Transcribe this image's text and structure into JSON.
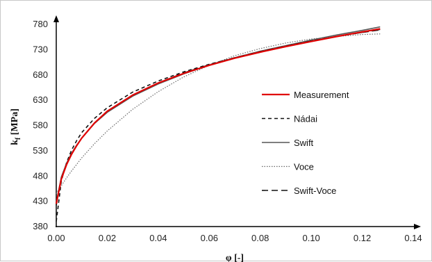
{
  "chart_data": {
    "type": "line",
    "title": "",
    "xlabel": "φ [-]",
    "ylabel_main": "k",
    "ylabel_sub": "f",
    "ylabel_unit": " [MPa]",
    "xlim": [
      0,
      0.14
    ],
    "ylim": [
      380,
      780
    ],
    "x_ticks": [
      "0.00",
      "0.02",
      "0.04",
      "0.06",
      "0.08",
      "0.10",
      "0.12",
      "0.14"
    ],
    "y_ticks": [
      "380",
      "430",
      "480",
      "530",
      "580",
      "630",
      "680",
      "730",
      "780"
    ],
    "grid": false,
    "legend_position": "right",
    "series": [
      {
        "name": "Measurement",
        "color": "#e00000",
        "dash": "solid",
        "x": [
          0.0,
          0.002,
          0.004,
          0.006,
          0.008,
          0.01,
          0.015,
          0.02,
          0.03,
          0.04,
          0.05,
          0.06,
          0.07,
          0.08,
          0.09,
          0.1,
          0.11,
          0.12,
          0.127
        ],
        "y": [
          425,
          474,
          502,
          523,
          540,
          555,
          585,
          608,
          640,
          664,
          683,
          699,
          713,
          725,
          736,
          746,
          756,
          765,
          771
        ]
      },
      {
        "name": "Nádai",
        "color": "#111111",
        "dash": "5,4",
        "x": [
          0.0,
          0.002,
          0.004,
          0.006,
          0.008,
          0.01,
          0.015,
          0.02,
          0.03,
          0.04,
          0.05,
          0.06,
          0.07,
          0.08,
          0.09,
          0.1,
          0.11,
          0.12,
          0.127
        ],
        "y": [
          390,
          470,
          506,
          531,
          550,
          566,
          594,
          615,
          646,
          668,
          686,
          701,
          714,
          726,
          737,
          747,
          756,
          764,
          770
        ]
      },
      {
        "name": "Swift",
        "color": "#555555",
        "dash": "solid",
        "x": [
          0.0,
          0.002,
          0.004,
          0.006,
          0.008,
          0.01,
          0.015,
          0.02,
          0.03,
          0.04,
          0.05,
          0.06,
          0.07,
          0.08,
          0.09,
          0.1,
          0.11,
          0.12,
          0.127
        ],
        "y": [
          428,
          478,
          505,
          525,
          541,
          555,
          584,
          606,
          638,
          662,
          682,
          699,
          714,
          727,
          738,
          749,
          759,
          768,
          775
        ]
      },
      {
        "name": "Voce",
        "color": "#666666",
        "dash": "1.5,2",
        "x": [
          0.0,
          0.002,
          0.004,
          0.006,
          0.008,
          0.01,
          0.015,
          0.02,
          0.03,
          0.04,
          0.05,
          0.06,
          0.07,
          0.08,
          0.09,
          0.1,
          0.11,
          0.12,
          0.127
        ],
        "y": [
          445,
          461,
          476,
          490,
          503,
          516,
          544,
          569,
          612,
          647,
          676,
          699,
          718,
          732,
          743,
          751,
          756,
          760,
          761
        ]
      },
      {
        "name": "Swift-Voce",
        "color": "#111111",
        "dash": "9,5",
        "x": [
          0.0,
          0.002,
          0.004,
          0.006,
          0.008,
          0.01,
          0.015,
          0.02,
          0.03,
          0.04,
          0.05,
          0.06,
          0.07,
          0.08,
          0.09,
          0.1,
          0.11,
          0.12,
          0.127
        ],
        "y": [
          422,
          474,
          503,
          524,
          541,
          555,
          585,
          608,
          640,
          664,
          684,
          700,
          714,
          726,
          737,
          747,
          756,
          764,
          769
        ]
      }
    ]
  }
}
